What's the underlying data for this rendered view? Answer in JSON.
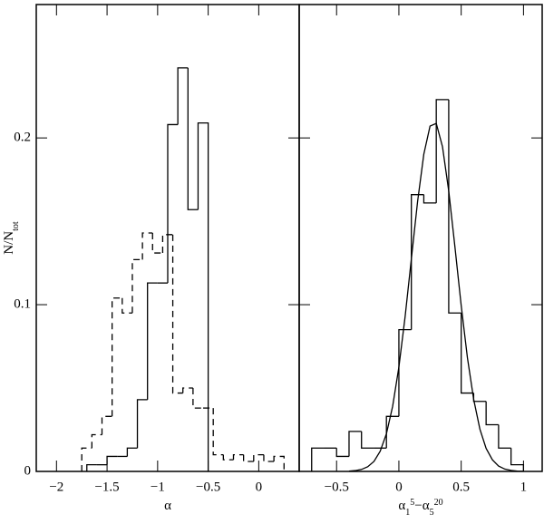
{
  "chart_data": [
    {
      "type": "histogram",
      "ylabel": {
        "text": "N/N",
        "sub": "tot"
      },
      "xlabel": [
        {
          "text": "α"
        }
      ],
      "xlim": [
        -2.2,
        0.4
      ],
      "xticks": [
        {
          "value": -2,
          "label": "−2"
        },
        {
          "value": -1.5,
          "label": "−1.5"
        },
        {
          "value": -1,
          "label": "−1"
        },
        {
          "value": -0.5,
          "label": "−0.5"
        },
        0
      ],
      "ylim": [
        0,
        0.28
      ],
      "yticks": [
        0,
        0.1,
        0.2
      ],
      "ytick_labels": true,
      "color": "#000000",
      "series": [
        {
          "type": "step",
          "dashed": false,
          "bins": [
            -1.7,
            -1.6,
            -1.5,
            -1.4,
            -1.3,
            -1.2,
            -1.1,
            -1.0,
            -0.9,
            -0.8,
            -0.7,
            -0.6,
            -0.5
          ],
          "values": [
            0.004,
            0.004,
            0.009,
            0.009,
            0.014,
            0.043,
            0.113,
            0.113,
            0.208,
            0.242,
            0.157,
            0.209
          ]
        },
        {
          "type": "step",
          "dashed": true,
          "bins": [
            -1.75,
            -1.65,
            -1.55,
            -1.45,
            -1.35,
            -1.25,
            -1.15,
            -1.05,
            -0.95,
            -0.85,
            -0.75,
            -0.65,
            -0.55,
            -0.45,
            -0.35,
            -0.25,
            -0.15,
            -0.05,
            0.05,
            0.15,
            0.25
          ],
          "values": [
            0.014,
            0.022,
            0.033,
            0.104,
            0.095,
            0.127,
            0.143,
            0.131,
            0.142,
            0.047,
            0.05,
            0.038,
            0.038,
            0.01,
            0.007,
            0.01,
            0.006,
            0.01,
            0.006,
            0.009
          ]
        }
      ]
    },
    {
      "type": "histogram",
      "xlabel": [
        {
          "text": "α"
        },
        {
          "text": "1",
          "shift": "sub"
        },
        {
          "text": "5",
          "shift": "sup"
        },
        {
          "text": "−α"
        },
        {
          "text": "5",
          "shift": "sub"
        },
        {
          "text": "20",
          "shift": "sup"
        }
      ],
      "xlim": [
        -0.8,
        1.15
      ],
      "xticks": [
        {
          "value": -0.5,
          "label": "−0.5"
        },
        0,
        0.5,
        1
      ],
      "ylim": [
        0,
        0.28
      ],
      "yticks": [
        0,
        0.1,
        0.2
      ],
      "ytick_labels": false,
      "color": "#000000",
      "series": [
        {
          "type": "step",
          "dashed": false,
          "bins": [
            -0.7,
            -0.6,
            -0.5,
            -0.4,
            -0.3,
            -0.2,
            -0.1,
            0.0,
            0.1,
            0.2,
            0.3,
            0.4,
            0.5,
            0.6,
            0.7,
            0.8,
            0.9,
            1.0
          ],
          "values": [
            0.014,
            0.014,
            0.009,
            0.024,
            0.014,
            0.014,
            0.033,
            0.085,
            0.166,
            0.161,
            0.223,
            0.095,
            0.047,
            0.042,
            0.028,
            0.014,
            0.004
          ]
        },
        {
          "type": "line",
          "dashed": false,
          "x": [
            -0.4,
            -0.35,
            -0.3,
            -0.25,
            -0.2,
            -0.15,
            -0.1,
            -0.05,
            0,
            0.05,
            0.1,
            0.15,
            0.2,
            0.25,
            0.3,
            0.35,
            0.4,
            0.45,
            0.5,
            0.55,
            0.6,
            0.65,
            0.7,
            0.75,
            0.8,
            0.85,
            0.9,
            0.95,
            1.0
          ],
          "values": [
            0.0002,
            0.0005,
            0.0012,
            0.0028,
            0.006,
            0.0121,
            0.0226,
            0.0391,
            0.0626,
            0.0928,
            0.1274,
            0.1618,
            0.1902,
            0.2071,
            0.2087,
            0.1947,
            0.1682,
            0.1345,
            0.0995,
            0.0682,
            0.0433,
            0.0254,
            0.0138,
            0.007,
            0.0032,
            0.0014,
            0.0006,
            0.0002,
            0.0001
          ]
        }
      ]
    }
  ]
}
